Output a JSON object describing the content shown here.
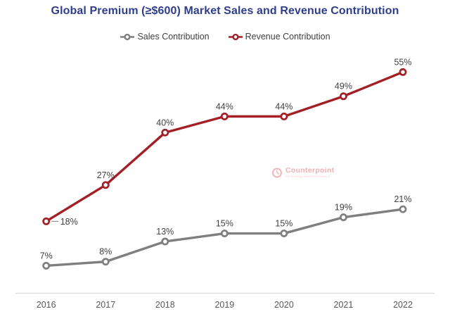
{
  "colors": {
    "title": "#2F3D8F",
    "sales": "#7F7F7F",
    "revenue": "#A32026",
    "data_label": "#404040",
    "axis_label": "#595959",
    "axis_line": "#D9D9D9",
    "leader_line": "#7F7F7F",
    "watermark": "#EFAFB3",
    "watermark_tagline": "#F5CFD1"
  },
  "watermark": {
    "name": "Counterpoint",
    "tagline": "Technology Market Research"
  },
  "chart_data": {
    "type": "line",
    "title": "Global Premium (≥$600) Market Sales and Revenue Contribution",
    "categories": [
      "2016",
      "2017",
      "2018",
      "2019",
      "2020",
      "2021",
      "2022"
    ],
    "series": [
      {
        "name": "Sales Contribution",
        "color": "#7F7F7F",
        "values": [
          7,
          8,
          13,
          15,
          15,
          19,
          21
        ],
        "labels": [
          "7%",
          "8%",
          "13%",
          "15%",
          "15%",
          "19%",
          "21%"
        ],
        "first_label_placement": "above"
      },
      {
        "name": "Revenue Contribution",
        "color": "#A32026",
        "values": [
          18,
          27,
          40,
          44,
          44,
          49,
          55
        ],
        "labels": [
          "18%",
          "27%",
          "40%",
          "44%",
          "44%",
          "49%",
          "55%"
        ],
        "first_label_placement": "right-with-leader"
      }
    ],
    "value_suffix": "%",
    "ylim": [
      0,
      60
    ],
    "grid": false,
    "legend_position": "top",
    "xlabel": "",
    "ylabel": ""
  }
}
